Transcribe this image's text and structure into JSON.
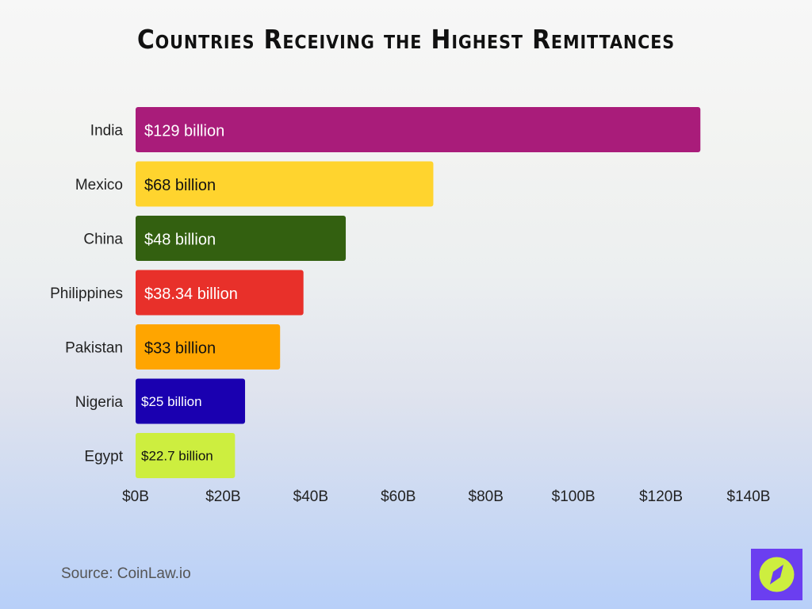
{
  "chart_data": {
    "type": "bar",
    "orientation": "horizontal",
    "title": "Countries Receiving the Highest Remittances",
    "categories": [
      "India",
      "Mexico",
      "China",
      "Philippines",
      "Pakistan",
      "Nigeria",
      "Egypt"
    ],
    "values": [
      129,
      68,
      48,
      38.34,
      33,
      25,
      22.7
    ],
    "data_labels": [
      "$129 billion",
      "$68 billion",
      "$48 billion",
      "$38.34 billion",
      "$33 billion",
      "$25 billion",
      "$22.7 billion"
    ],
    "colors": [
      "#a91c7a",
      "#ffd42e",
      "#336010",
      "#e8302a",
      "#ffa500",
      "#1a00b0",
      "#cdee3f"
    ],
    "label_colors": [
      "#ffffff",
      "#111111",
      "#ffffff",
      "#ffffff",
      "#111111",
      "#ffffff",
      "#111111"
    ],
    "xlim": [
      0,
      140
    ],
    "xticks": [
      0,
      20,
      40,
      60,
      80,
      100,
      120,
      140
    ],
    "xtick_labels": [
      "$0B",
      "$20B",
      "$40B",
      "$60B",
      "$80B",
      "$100B",
      "$120B",
      "$140B"
    ],
    "xlabel": "",
    "ylabel": "",
    "grid": false,
    "legend": "none"
  },
  "source": "Source: CoinLaw.io",
  "logo": {
    "icon": "compass-icon",
    "bg": "#6b3ef0",
    "fg": "#cdee3f"
  }
}
